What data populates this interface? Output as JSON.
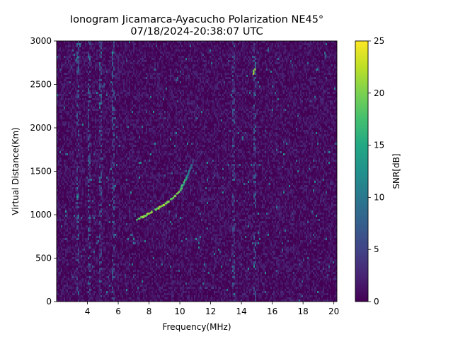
{
  "chart_data": {
    "type": "heatmap",
    "title": "Ionogram Jicamarca-Ayacucho Polarization NE45°",
    "subtitle": "07/18/2024-20:38:07 UTC",
    "xlabel": "Frequency(MHz)",
    "ylabel": "Virtual Distance(Km)",
    "xlim": [
      2.0,
      20.2
    ],
    "ylim": [
      0,
      3000
    ],
    "xticks": [
      4,
      6,
      8,
      10,
      12,
      14,
      16,
      18,
      20
    ],
    "yticks": [
      0,
      500,
      1000,
      1500,
      2000,
      2500,
      3000
    ],
    "colorbar": {
      "label": "SNR[dB]",
      "range": [
        0,
        25
      ],
      "ticks": [
        0,
        5,
        10,
        15,
        20,
        25
      ],
      "colormap": "viridis"
    },
    "background_snr_db": [
      0,
      3
    ],
    "echo_trace": {
      "description_hidden": true,
      "points": [
        {
          "freq_mhz": 7.2,
          "distance_km": 950,
          "snr_db": 21
        },
        {
          "freq_mhz": 7.6,
          "distance_km": 980,
          "snr_db": 22
        },
        {
          "freq_mhz": 8.0,
          "distance_km": 1020,
          "snr_db": 23
        },
        {
          "freq_mhz": 8.5,
          "distance_km": 1070,
          "snr_db": 23
        },
        {
          "freq_mhz": 9.0,
          "distance_km": 1120,
          "snr_db": 22
        },
        {
          "freq_mhz": 9.5,
          "distance_km": 1190,
          "snr_db": 22
        },
        {
          "freq_mhz": 10.0,
          "distance_km": 1280,
          "snr_db": 21
        },
        {
          "freq_mhz": 10.3,
          "distance_km": 1380,
          "snr_db": 18
        },
        {
          "freq_mhz": 10.6,
          "distance_km": 1500,
          "snr_db": 12
        },
        {
          "freq_mhz": 10.9,
          "distance_km": 1640,
          "snr_db": 8
        }
      ]
    },
    "vertical_interference_mhz": [
      3.3,
      4.1,
      4.8,
      5.6,
      13.4,
      14.8
    ],
    "hot_spots": [
      {
        "freq_mhz": 14.8,
        "distance_km": 2660,
        "snr_db": 24
      },
      {
        "freq_mhz": 3.3,
        "distance_km": 2800,
        "snr_db": 12
      },
      {
        "freq_mhz": 19.5,
        "distance_km": 2850,
        "snr_db": 10
      }
    ]
  }
}
